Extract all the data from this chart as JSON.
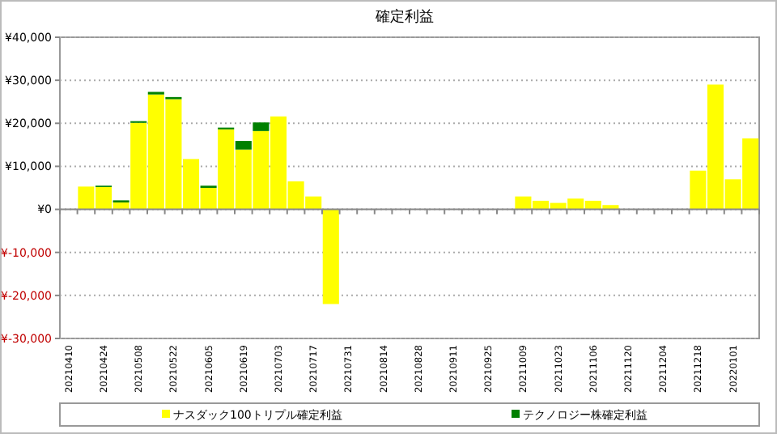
{
  "chart_data": {
    "type": "bar",
    "stacked": true,
    "title": "確定利益",
    "categories": [
      "20210410",
      null,
      "20210424",
      null,
      "20210508",
      null,
      "20210522",
      null,
      "20210605",
      null,
      "20210619",
      null,
      "20210703",
      null,
      "20210717",
      null,
      "20210731",
      null,
      "20210814",
      null,
      "20210828",
      null,
      "20210911",
      null,
      "20210925",
      null,
      "20211009",
      null,
      "20211023",
      null,
      "20211106",
      null,
      "20211120",
      null,
      "20211204",
      null,
      "20211218",
      null,
      "20220101",
      null
    ],
    "series": [
      {
        "name": "ナスダック100トリプル確定利益",
        "color": "#ffff00",
        "values": [
          0,
          5300,
          5200,
          1600,
          20100,
          26700,
          25600,
          11700,
          5000,
          18600,
          13900,
          18200,
          21600,
          6500,
          3000,
          -22000,
          0,
          0,
          0,
          0,
          0,
          0,
          0,
          0,
          0,
          0,
          3000,
          2000,
          1500,
          2500,
          2000,
          1000,
          0,
          0,
          0,
          0,
          9000,
          29000,
          7000,
          16500
        ]
      },
      {
        "name": "テクノロジー株確定利益",
        "color": "#008000",
        "values": [
          0,
          0,
          300,
          500,
          400,
          600,
          500,
          0,
          500,
          400,
          2000,
          2000,
          0,
          0,
          0,
          0,
          0,
          0,
          0,
          0,
          0,
          0,
          0,
          0,
          0,
          0,
          0,
          0,
          0,
          0,
          0,
          0,
          0,
          0,
          0,
          0,
          0,
          0,
          0,
          0
        ]
      }
    ],
    "ylim": [
      -30000,
      40000
    ],
    "yticks": [
      {
        "value": -30000,
        "label": "¥-30,000"
      },
      {
        "value": -20000,
        "label": "¥-20,000"
      },
      {
        "value": -10000,
        "label": "¥-10,000"
      },
      {
        "value": 0,
        "label": "¥0"
      },
      {
        "value": 10000,
        "label": "¥10,000"
      },
      {
        "value": 20000,
        "label": "¥20,000"
      },
      {
        "value": 30000,
        "label": "¥30,000"
      },
      {
        "value": 40000,
        "label": "¥40,000"
      }
    ],
    "grid": "y",
    "legend": "bottom"
  }
}
